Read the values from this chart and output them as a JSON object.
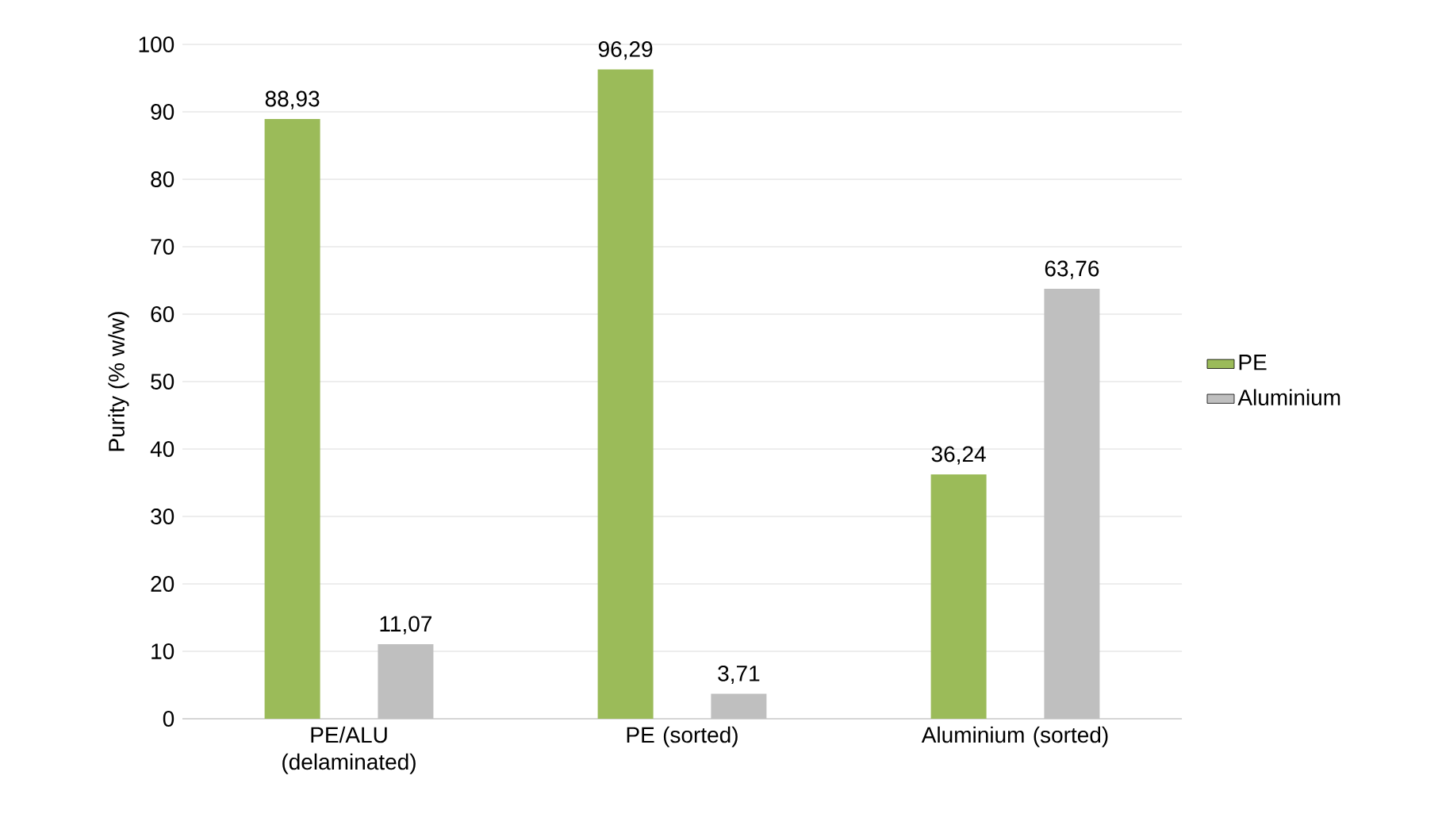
{
  "chart_data": {
    "type": "bar",
    "ylabel": "Purity (% w/w)",
    "categories": [
      "PE/ALU (delaminated)",
      "PE (sorted)",
      "Aluminium (sorted)"
    ],
    "series": [
      {
        "name": "PE",
        "color": "#9bbb59",
        "values": [
          88.93,
          96.29,
          36.24
        ],
        "value_labels": [
          "88,93",
          "96,29",
          "36,24"
        ]
      },
      {
        "name": "Aluminium",
        "color": "#bfbfbf",
        "values": [
          11.07,
          3.71,
          63.76
        ],
        "value_labels": [
          "11,07",
          "3,71",
          "63,76"
        ]
      }
    ],
    "ylim": [
      0,
      100
    ],
    "yticks": [
      0,
      10,
      20,
      30,
      40,
      50,
      60,
      70,
      80,
      90,
      100
    ],
    "grid": "y",
    "legend": "right"
  }
}
